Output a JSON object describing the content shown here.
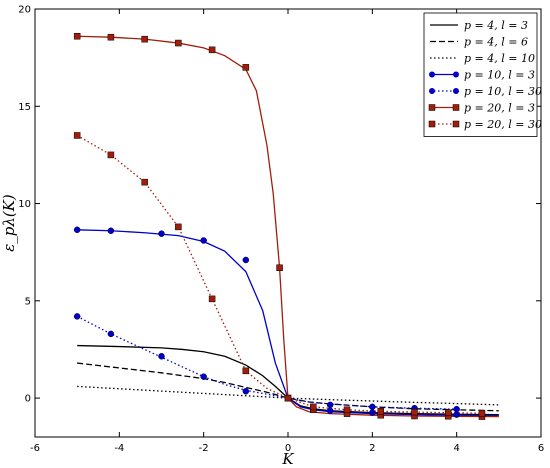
{
  "chart_data": {
    "type": "line",
    "xlabel": "K",
    "ylabel": "ε_pλ(K)",
    "xlim": [
      -6,
      6
    ],
    "ylim": [
      -2,
      20
    ],
    "xticks": [
      -6,
      -4,
      -2,
      0,
      2,
      4,
      6
    ],
    "yticks": [
      0,
      5,
      10,
      15,
      20
    ],
    "grid": false,
    "legend_position": "top-right",
    "series": [
      {
        "name": "p = 4, l = 3",
        "color": "#000000",
        "dash": "solid",
        "marker": "none",
        "x": [
          -5,
          -4,
          -3,
          -2.5,
          -2,
          -1.5,
          -1,
          -0.6,
          -0.3,
          0,
          0.3,
          0.6,
          1,
          2,
          3,
          4,
          5
        ],
        "y": [
          2.7,
          2.65,
          2.58,
          2.5,
          2.38,
          2.15,
          1.7,
          1.15,
          0.6,
          0.0,
          -0.4,
          -0.55,
          -0.65,
          -0.75,
          -0.8,
          -0.83,
          -0.85
        ]
      },
      {
        "name": "p = 4, l = 6",
        "color": "#000000",
        "dash": "dashed",
        "marker": "none",
        "x": [
          -5,
          -4,
          -3,
          -2,
          -1.5,
          -1,
          -0.5,
          0,
          0.5,
          1,
          2,
          3,
          4,
          5
        ],
        "y": [
          1.8,
          1.55,
          1.3,
          1.0,
          0.8,
          0.55,
          0.3,
          0.0,
          -0.2,
          -0.3,
          -0.45,
          -0.55,
          -0.6,
          -0.65
        ]
      },
      {
        "name": "p = 4, l = 10",
        "color": "#000000",
        "dash": "dotted",
        "marker": "none",
        "x": [
          -5,
          -4,
          -3,
          -2,
          -1,
          0,
          1,
          2,
          3,
          4,
          5
        ],
        "y": [
          0.6,
          0.48,
          0.36,
          0.24,
          0.12,
          0.0,
          -0.08,
          -0.15,
          -0.22,
          -0.28,
          -0.35
        ]
      },
      {
        "name": "p = 10, l = 3",
        "color": "#0000c8",
        "dash": "solid",
        "marker": "circle",
        "x": [
          -5,
          -4.2,
          -3.4,
          -2.6,
          -2,
          -1.5,
          -1,
          -0.6,
          -0.3,
          0,
          0.3,
          0.6,
          1,
          2,
          3,
          4,
          5
        ],
        "y": [
          8.65,
          8.6,
          8.5,
          8.35,
          8.05,
          7.55,
          6.5,
          4.5,
          1.8,
          0.0,
          -0.45,
          -0.6,
          -0.7,
          -0.8,
          -0.85,
          -0.88,
          -0.9
        ],
        "marker_x": [
          -5,
          -4.2,
          -3.0,
          -2.0,
          -1.0,
          0,
          1.0,
          2.0,
          3.0,
          4.0
        ],
        "marker_y": [
          8.65,
          8.6,
          8.45,
          8.1,
          7.1,
          0.0,
          -0.65,
          -0.75,
          -0.8,
          -0.85
        ]
      },
      {
        "name": "p = 10, l = 30",
        "color": "#0000c8",
        "dash": "dotted",
        "marker": "circle",
        "x": [
          -5,
          -4.2,
          -3.4,
          -3.0,
          -2.5,
          -2.0,
          -1.5,
          -1.0,
          -0.5,
          0,
          0.5,
          1.0,
          2.0,
          3.0,
          4.0
        ],
        "y": [
          4.2,
          3.3,
          2.5,
          2.1,
          1.6,
          1.1,
          0.7,
          0.4,
          0.2,
          0.0,
          -0.2,
          -0.3,
          -0.45,
          -0.52,
          -0.57
        ],
        "marker_x": [
          -5,
          -4.2,
          -3.0,
          -2.0,
          -1.0,
          0,
          1.0,
          2.0,
          3.0,
          4.0
        ],
        "marker_y": [
          4.2,
          3.3,
          2.15,
          1.1,
          0.35,
          0.0,
          -0.35,
          -0.45,
          -0.52,
          -0.57
        ]
      },
      {
        "name": "p = 20, l = 3",
        "color": "#a01e0a",
        "dash": "solid",
        "marker": "square",
        "x": [
          -5,
          -4.2,
          -3.4,
          -2.6,
          -2.0,
          -1.5,
          -1.0,
          -0.75,
          -0.5,
          -0.35,
          -0.2,
          -0.1,
          0,
          0.2,
          0.5,
          1.0,
          2.0,
          3.0,
          4.0,
          5.0
        ],
        "y": [
          18.6,
          18.55,
          18.45,
          18.25,
          18.0,
          17.6,
          16.9,
          15.8,
          13.0,
          10.5,
          6.7,
          3.0,
          0.0,
          -0.45,
          -0.7,
          -0.8,
          -0.88,
          -0.92,
          -0.94,
          -0.95
        ],
        "marker_x": [
          -5,
          -4.2,
          -3.4,
          -2.6,
          -1.8,
          -1.0,
          -0.2,
          0,
          0.6,
          1.4,
          2.2,
          3.0,
          3.8,
          4.6
        ],
        "marker_y": [
          18.6,
          18.55,
          18.45,
          18.25,
          17.9,
          17.0,
          6.7,
          0.0,
          -0.6,
          -0.8,
          -0.88,
          -0.92,
          -0.93,
          -0.95
        ]
      },
      {
        "name": "p = 20, l = 30",
        "color": "#a01e0a",
        "dash": "dotted",
        "marker": "square",
        "x": [
          -5,
          -4.2,
          -3.4,
          -2.6,
          -1.8,
          -1.0,
          -0.5,
          0,
          0.6,
          1.4,
          2.2,
          3.0,
          3.8,
          4.6
        ],
        "y": [
          13.5,
          12.5,
          11.1,
          8.8,
          5.1,
          1.4,
          0.5,
          0.0,
          -0.45,
          -0.6,
          -0.68,
          -0.72,
          -0.75,
          -0.78
        ],
        "marker_x": [
          -5,
          -4.2,
          -3.4,
          -2.6,
          -1.8,
          -1.0,
          0,
          0.6,
          1.4,
          2.2,
          3.0,
          3.8,
          4.6
        ],
        "marker_y": [
          13.5,
          12.5,
          11.1,
          8.8,
          5.1,
          1.4,
          0.0,
          -0.45,
          -0.6,
          -0.68,
          -0.72,
          -0.75,
          -0.78
        ]
      }
    ]
  }
}
